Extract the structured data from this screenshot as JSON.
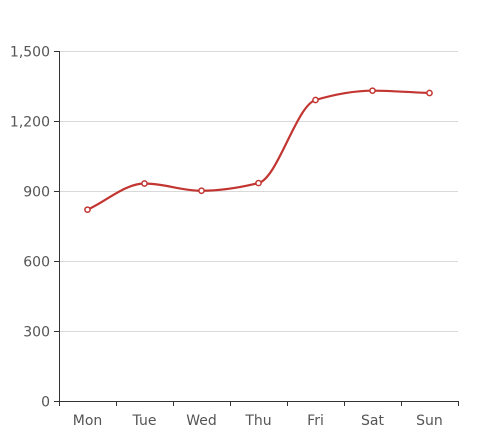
{
  "chart_data": {
    "type": "line",
    "smooth": true,
    "categories": [
      "Mon",
      "Tue",
      "Wed",
      "Thu",
      "Fri",
      "Sat",
      "Sun"
    ],
    "series": [
      {
        "values": [
          820,
          932,
          901,
          934,
          1290,
          1330,
          1320
        ],
        "color": "#c23531"
      }
    ],
    "ylim": [
      0,
      1500
    ],
    "yticks": [
      0,
      300,
      600,
      900,
      1200,
      1500
    ],
    "ytick_labels": [
      "0",
      "300",
      "600",
      "900",
      "1,200",
      "1,500"
    ],
    "grid": true,
    "legend": "none"
  }
}
